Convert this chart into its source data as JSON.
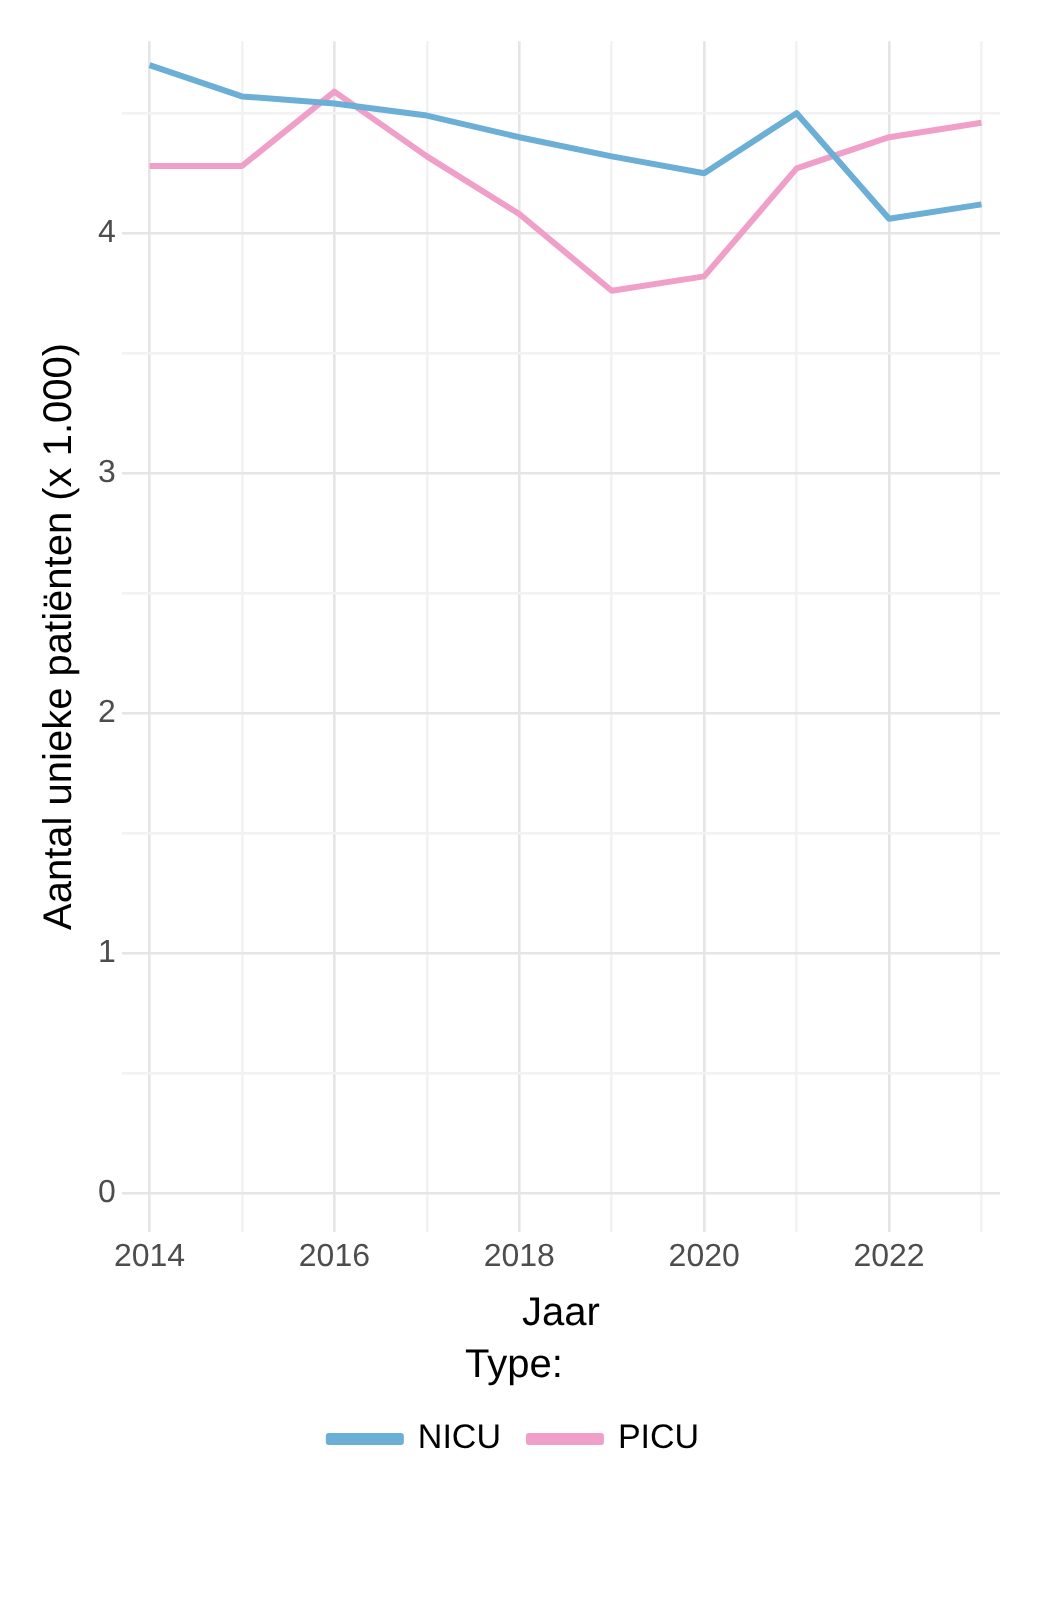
{
  "chart_data": {
    "type": "line",
    "xlabel": "Jaar",
    "ylabel": "Aantal unieke patiënten (x 1.000)",
    "legend_title": "Type:",
    "x": [
      2014,
      2015,
      2016,
      2017,
      2018,
      2019,
      2020,
      2021,
      2022,
      2023
    ],
    "series": [
      {
        "name": "NICU",
        "color": "#6baed6",
        "values": [
          4.7,
          4.57,
          4.54,
          4.49,
          4.4,
          4.32,
          4.25,
          4.5,
          4.06,
          4.12
        ]
      },
      {
        "name": "PICU",
        "color": "#f0a0c8",
        "values": [
          4.28,
          4.28,
          4.59,
          4.32,
          4.08,
          3.76,
          3.82,
          4.27,
          4.4,
          4.46
        ]
      }
    ],
    "xlim": [
      2013.7,
      2023.2
    ],
    "ylim": [
      -0.16,
      4.8
    ],
    "xticks": [
      2014,
      {
        "value": 2015,
        "label": null
      },
      2016,
      {
        "value": 2017,
        "label": null
      },
      2018,
      {
        "value": 2019,
        "label": null
      },
      2020,
      {
        "value": 2021,
        "label": null
      },
      2022,
      {
        "value": 2023,
        "label": null
      }
    ],
    "yticks": [
      0,
      {
        "value": 0.5,
        "label": null
      },
      1,
      {
        "value": 1.5,
        "label": null
      },
      2,
      {
        "value": 2.5,
        "label": null
      },
      3,
      {
        "value": 3.5,
        "label": null
      },
      4,
      {
        "value": 4.5,
        "label": null
      }
    ],
    "grid": true,
    "legend": "bottom",
    "marker": "none",
    "line_style": "solid"
  }
}
